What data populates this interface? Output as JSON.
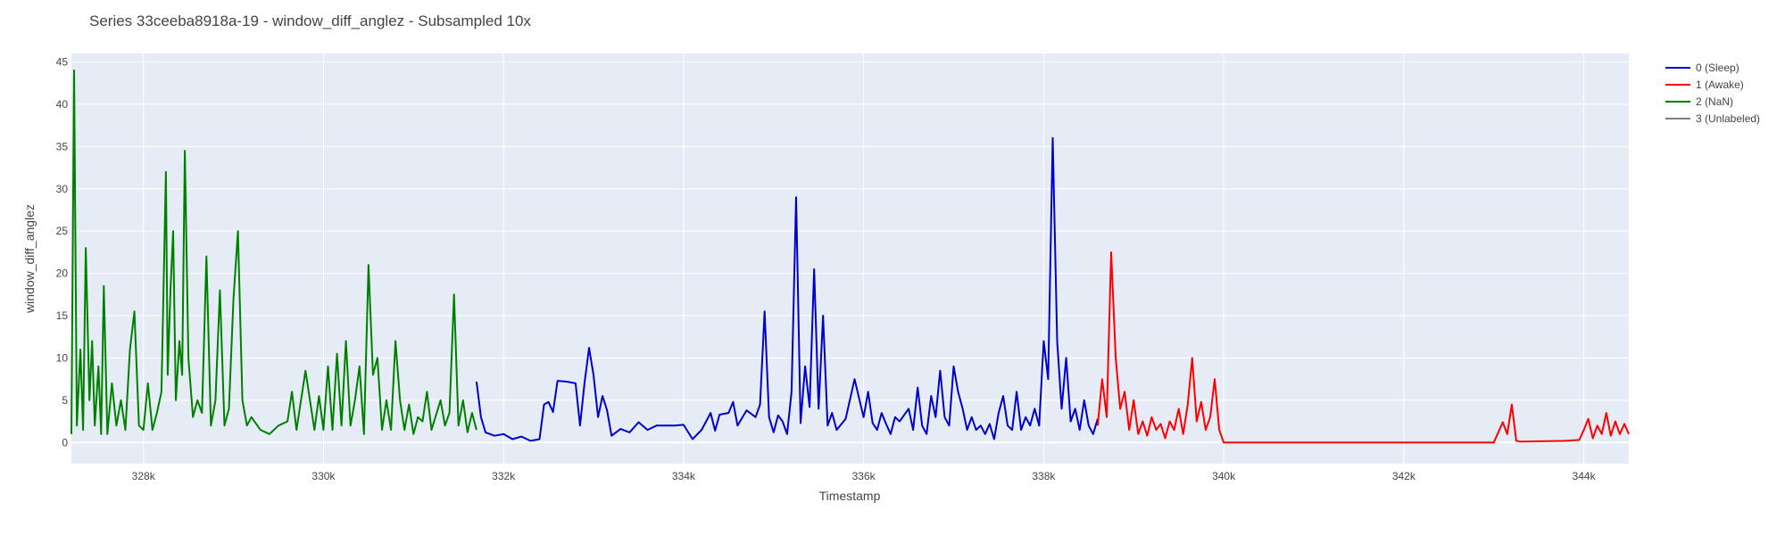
{
  "chart_data": {
    "type": "line",
    "title": "Series 33ceeba8918a-19 - window_diff_anglez - Subsampled 10x",
    "xlabel": "Timestamp",
    "ylabel": "window_diff_anglez",
    "xlim": [
      327200,
      344500
    ],
    "ylim": [
      -2.5,
      46
    ],
    "x_ticks": [
      328000,
      330000,
      332000,
      334000,
      336000,
      338000,
      340000,
      342000,
      344000
    ],
    "x_tick_labels": [
      "328k",
      "330k",
      "332k",
      "334k",
      "336k",
      "338k",
      "340k",
      "342k",
      "344k"
    ],
    "y_ticks": [
      0,
      5,
      10,
      15,
      20,
      25,
      30,
      35,
      40,
      45
    ],
    "y_tick_labels": [
      "0",
      "5",
      "10",
      "15",
      "20",
      "25",
      "30",
      "35",
      "40",
      "45"
    ],
    "grid": true,
    "legend_position": "top-right",
    "background": "#e5ecf6",
    "series": [
      {
        "name": "0 (Sleep)",
        "color": "#0000cc",
        "segments": [
          [
            [
              331700,
              7.2
            ],
            [
              331750,
              3
            ],
            [
              331800,
              1.2
            ],
            [
              331900,
              0.8
            ],
            [
              332000,
              1
            ],
            [
              332100,
              0.4
            ],
            [
              332200,
              0.7
            ],
            [
              332300,
              0.2
            ],
            [
              332400,
              0.4
            ],
            [
              332450,
              4.5
            ],
            [
              332500,
              4.8
            ],
            [
              332550,
              3.6
            ],
            [
              332600,
              7.3
            ],
            [
              332700,
              7.2
            ],
            [
              332800,
              7
            ],
            [
              332850,
              2
            ],
            [
              332900,
              7
            ],
            [
              332950,
              11.2
            ],
            [
              333000,
              8
            ],
            [
              333050,
              3
            ],
            [
              333100,
              5.5
            ],
            [
              333150,
              3.8
            ],
            [
              333200,
              0.8
            ],
            [
              333300,
              1.6
            ],
            [
              333400,
              1.2
            ],
            [
              333500,
              2.4
            ],
            [
              333600,
              1.5
            ],
            [
              333700,
              2
            ],
            [
              333800,
              2
            ],
            [
              333900,
              2
            ],
            [
              334000,
              2.1
            ],
            [
              334100,
              0.4
            ],
            [
              334200,
              1.5
            ],
            [
              334300,
              3.5
            ],
            [
              334350,
              1.4
            ],
            [
              334400,
              3.3
            ],
            [
              334500,
              3.5
            ],
            [
              334550,
              4.8
            ],
            [
              334600,
              2
            ],
            [
              334700,
              3.8
            ],
            [
              334800,
              3
            ],
            [
              334850,
              4.5
            ],
            [
              334900,
              15.5
            ],
            [
              334950,
              3
            ],
            [
              335000,
              1.2
            ],
            [
              335050,
              3.2
            ],
            [
              335100,
              2.5
            ],
            [
              335150,
              1
            ],
            [
              335200,
              6
            ],
            [
              335250,
              29
            ],
            [
              335300,
              2.3
            ],
            [
              335350,
              9
            ],
            [
              335400,
              4.2
            ],
            [
              335450,
              20.5
            ],
            [
              335500,
              4
            ],
            [
              335550,
              15
            ],
            [
              335600,
              2
            ],
            [
              335650,
              3.5
            ],
            [
              335700,
              1.5
            ],
            [
              335800,
              2.8
            ],
            [
              335900,
              7.5
            ],
            [
              336000,
              3
            ],
            [
              336050,
              6
            ],
            [
              336100,
              2.3
            ],
            [
              336150,
              1.5
            ],
            [
              336200,
              3.5
            ],
            [
              336250,
              2.2
            ],
            [
              336300,
              1
            ],
            [
              336350,
              3
            ],
            [
              336400,
              2.5
            ],
            [
              336500,
              4
            ],
            [
              336550,
              1.5
            ],
            [
              336600,
              6.5
            ],
            [
              336650,
              2
            ],
            [
              336700,
              1
            ],
            [
              336750,
              5.5
            ],
            [
              336800,
              3
            ],
            [
              336850,
              8.5
            ],
            [
              336900,
              3
            ],
            [
              336950,
              2
            ],
            [
              337000,
              9
            ],
            [
              337050,
              6
            ],
            [
              337100,
              4
            ],
            [
              337150,
              1.5
            ],
            [
              337200,
              3
            ],
            [
              337250,
              1.5
            ],
            [
              337300,
              2
            ],
            [
              337350,
              1
            ],
            [
              337400,
              2.2
            ],
            [
              337450,
              0.4
            ],
            [
              337500,
              3.5
            ],
            [
              337550,
              5.5
            ],
            [
              337600,
              2
            ],
            [
              337650,
              1.5
            ],
            [
              337700,
              6
            ],
            [
              337750,
              1.5
            ],
            [
              337800,
              3
            ],
            [
              337850,
              2
            ],
            [
              337900,
              4
            ],
            [
              337950,
              2
            ],
            [
              338000,
              12
            ],
            [
              338050,
              7.5
            ],
            [
              338100,
              36
            ],
            [
              338150,
              12
            ],
            [
              338200,
              4
            ],
            [
              338250,
              10
            ],
            [
              338300,
              2.5
            ],
            [
              338350,
              4
            ],
            [
              338400,
              1.5
            ],
            [
              338450,
              5
            ],
            [
              338500,
              2
            ],
            [
              338550,
              1
            ],
            [
              338600,
              2.8
            ]
          ]
        ]
      },
      {
        "name": "1 (Awake)",
        "color": "#ff0000",
        "segments": [
          [
            [
              338600,
              2
            ],
            [
              338650,
              7.5
            ],
            [
              338700,
              3
            ],
            [
              338750,
              22.5
            ],
            [
              338800,
              10
            ],
            [
              338850,
              4
            ],
            [
              338900,
              6
            ],
            [
              338950,
              1.5
            ],
            [
              339000,
              5
            ],
            [
              339050,
              1
            ],
            [
              339100,
              2.5
            ],
            [
              339150,
              0.8
            ],
            [
              339200,
              3
            ],
            [
              339250,
              1.5
            ],
            [
              339300,
              2.2
            ],
            [
              339350,
              0.5
            ],
            [
              339400,
              2.5
            ],
            [
              339450,
              1.5
            ],
            [
              339500,
              4
            ],
            [
              339550,
              1
            ],
            [
              339600,
              4.5
            ],
            [
              339650,
              10
            ],
            [
              339700,
              2.5
            ],
            [
              339750,
              4.8
            ],
            [
              339800,
              1.5
            ],
            [
              339850,
              3
            ],
            [
              339900,
              7.5
            ],
            [
              339950,
              1.5
            ],
            [
              340000,
              0
            ],
            [
              341000,
              0
            ],
            [
              342000,
              0
            ],
            [
              343000,
              0
            ],
            [
              343100,
              2.4
            ],
            [
              343150,
              1
            ],
            [
              343200,
              4.5
            ],
            [
              343250,
              0.2
            ],
            [
              343300,
              0.1
            ],
            [
              343800,
              0.2
            ],
            [
              343950,
              0.3
            ],
            [
              344000,
              1.5
            ],
            [
              344050,
              2.8
            ],
            [
              344100,
              0.5
            ],
            [
              344150,
              2
            ],
            [
              344200,
              1
            ],
            [
              344250,
              3.5
            ],
            [
              344300,
              0.8
            ],
            [
              344350,
              2.5
            ],
            [
              344400,
              1
            ],
            [
              344450,
              2.2
            ],
            [
              344500,
              1
            ]
          ]
        ]
      },
      {
        "name": "2 (NaN)",
        "color": "#008000",
        "segments": [
          [
            [
              327200,
              1
            ],
            [
              327230,
              44
            ],
            [
              327260,
              2
            ],
            [
              327300,
              11
            ],
            [
              327330,
              1.5
            ],
            [
              327360,
              23
            ],
            [
              327400,
              5
            ],
            [
              327430,
              12
            ],
            [
              327460,
              2
            ],
            [
              327500,
              9
            ],
            [
              327530,
              1
            ],
            [
              327560,
              18.5
            ],
            [
              327600,
              1
            ],
            [
              327650,
              7
            ],
            [
              327700,
              2
            ],
            [
              327750,
              5
            ],
            [
              327800,
              1.5
            ],
            [
              327850,
              11
            ],
            [
              327900,
              15.5
            ],
            [
              327950,
              2
            ],
            [
              328000,
              1.5
            ],
            [
              328050,
              7
            ],
            [
              328100,
              1.5
            ],
            [
              328150,
              3.5
            ],
            [
              328200,
              6
            ],
            [
              328250,
              32
            ],
            [
              328270,
              8
            ],
            [
              328300,
              18
            ],
            [
              328330,
              25
            ],
            [
              328360,
              5
            ],
            [
              328400,
              12
            ],
            [
              328430,
              8
            ],
            [
              328460,
              34.5
            ],
            [
              328500,
              10
            ],
            [
              328550,
              3
            ],
            [
              328600,
              5
            ],
            [
              328650,
              3.5
            ],
            [
              328700,
              22
            ],
            [
              328750,
              2
            ],
            [
              328800,
              5
            ],
            [
              328850,
              18
            ],
            [
              328900,
              2
            ],
            [
              328950,
              4
            ],
            [
              329000,
              17
            ],
            [
              329050,
              25
            ],
            [
              329100,
              5
            ],
            [
              329150,
              2
            ],
            [
              329200,
              3
            ],
            [
              329300,
              1.5
            ],
            [
              329400,
              1
            ],
            [
              329500,
              2
            ],
            [
              329600,
              2.5
            ],
            [
              329650,
              6
            ],
            [
              329700,
              1.5
            ],
            [
              329800,
              8.5
            ],
            [
              329900,
              1.5
            ],
            [
              329950,
              5.5
            ],
            [
              330000,
              1.5
            ],
            [
              330050,
              9
            ],
            [
              330100,
              1.5
            ],
            [
              330150,
              10.5
            ],
            [
              330200,
              2
            ],
            [
              330250,
              12
            ],
            [
              330300,
              2
            ],
            [
              330350,
              5
            ],
            [
              330400,
              9
            ],
            [
              330450,
              1
            ],
            [
              330500,
              21
            ],
            [
              330550,
              8
            ],
            [
              330600,
              10
            ],
            [
              330650,
              1.5
            ],
            [
              330700,
              5
            ],
            [
              330750,
              1.5
            ],
            [
              330800,
              12
            ],
            [
              330850,
              5
            ],
            [
              330900,
              1.5
            ],
            [
              330950,
              4.5
            ],
            [
              331000,
              1
            ],
            [
              331050,
              3
            ],
            [
              331100,
              2.5
            ],
            [
              331150,
              6
            ],
            [
              331200,
              1.5
            ],
            [
              331300,
              5
            ],
            [
              331350,
              2
            ],
            [
              331400,
              3.5
            ],
            [
              331450,
              17.5
            ],
            [
              331500,
              2
            ],
            [
              331550,
              5
            ],
            [
              331600,
              1.2
            ],
            [
              331650,
              3.5
            ],
            [
              331700,
              1.5
            ]
          ]
        ]
      },
      {
        "name": "3 (Unlabeled)",
        "color": "#808080",
        "segments": []
      }
    ]
  }
}
